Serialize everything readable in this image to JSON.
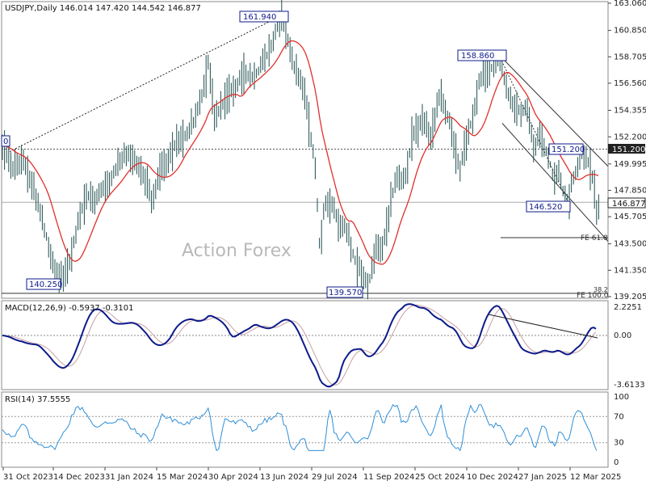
{
  "header": {
    "price_title": "USDJPY,Daily  146.014 147.420 144.542 146.877",
    "macd_title": "MACD(12,26,9) -0.5937 -0.3101",
    "rsi_title": "RSI(14) 37.5555"
  },
  "watermark": "Action Forex",
  "annotations": {
    "h161": "161.940",
    "h158": "158.860",
    "l140a": "140.250",
    "l139": "139.570",
    "l146": "146.520",
    "l151": "151.200",
    "tag151": "151.200",
    "tag_last": "146.877",
    "fe618": "FE 61.8",
    "fe1000": "FE 100.0",
    "fe382": "38.2",
    "left_clip": "0"
  },
  "colors": {
    "candle": "#1f4e4e",
    "ma": "#e0302c",
    "macd": "#0d1b8a",
    "signal": "#c8a0a0",
    "rsi": "#2f8fd8"
  },
  "chart_data": [
    {
      "type": "line",
      "title": "USDJPY,Daily",
      "ylim": [
        139.205,
        163.06
      ],
      "y_ticks": [
        "163.060",
        "160.850",
        "158.705",
        "156.560",
        "154.355",
        "152.200",
        "149.995",
        "147.850",
        "145.705",
        "143.500",
        "141.350",
        "139.205"
      ],
      "x_ticks": [
        "31 Oct 2023",
        "14 Dec 2023",
        "31 Jan 2024",
        "15 Mar 2024",
        "30 Apr 2024",
        "13 Jun 2024",
        "29 Jul 2024",
        "11 Sep 2024",
        "25 Oct 2024",
        "10 Dec 2024",
        "27 Jan 2025",
        "12 Mar 2025"
      ],
      "levels": {
        "resistance": 151.2,
        "last": 146.877,
        "fe618": 144.0,
        "fe1000": 139.5
      },
      "series": [
        {
          "name": "USDJPY",
          "x": [
            "31 Oct 2023",
            "14 Dec 2023",
            "31 Jan 2024",
            "15 Mar 2024",
            "30 Apr 2024",
            "13 Jun 2024",
            "29 Jul 2024",
            "11 Sep 2024",
            "25 Oct 2024",
            "10 Dec 2024",
            "27 Jan 2025",
            "12 Mar 2025"
          ],
          "values": [
            151.2,
            141.5,
            147.5,
            150.0,
            155.5,
            157.5,
            150.0,
            142.0,
            152.0,
            151.5,
            155.0,
            148.5
          ]
        }
      ]
    },
    {
      "type": "line",
      "title": "MACD(12,26,9)",
      "y_ticks": [
        "2.2251",
        "0.00",
        "-3.6133"
      ],
      "ylim": [
        -3.6133,
        2.2251
      ]
    },
    {
      "type": "line",
      "title": "RSI(14)",
      "y_ticks": [
        "100",
        "70",
        "30",
        "0"
      ],
      "ylim": [
        0,
        100
      ]
    }
  ]
}
